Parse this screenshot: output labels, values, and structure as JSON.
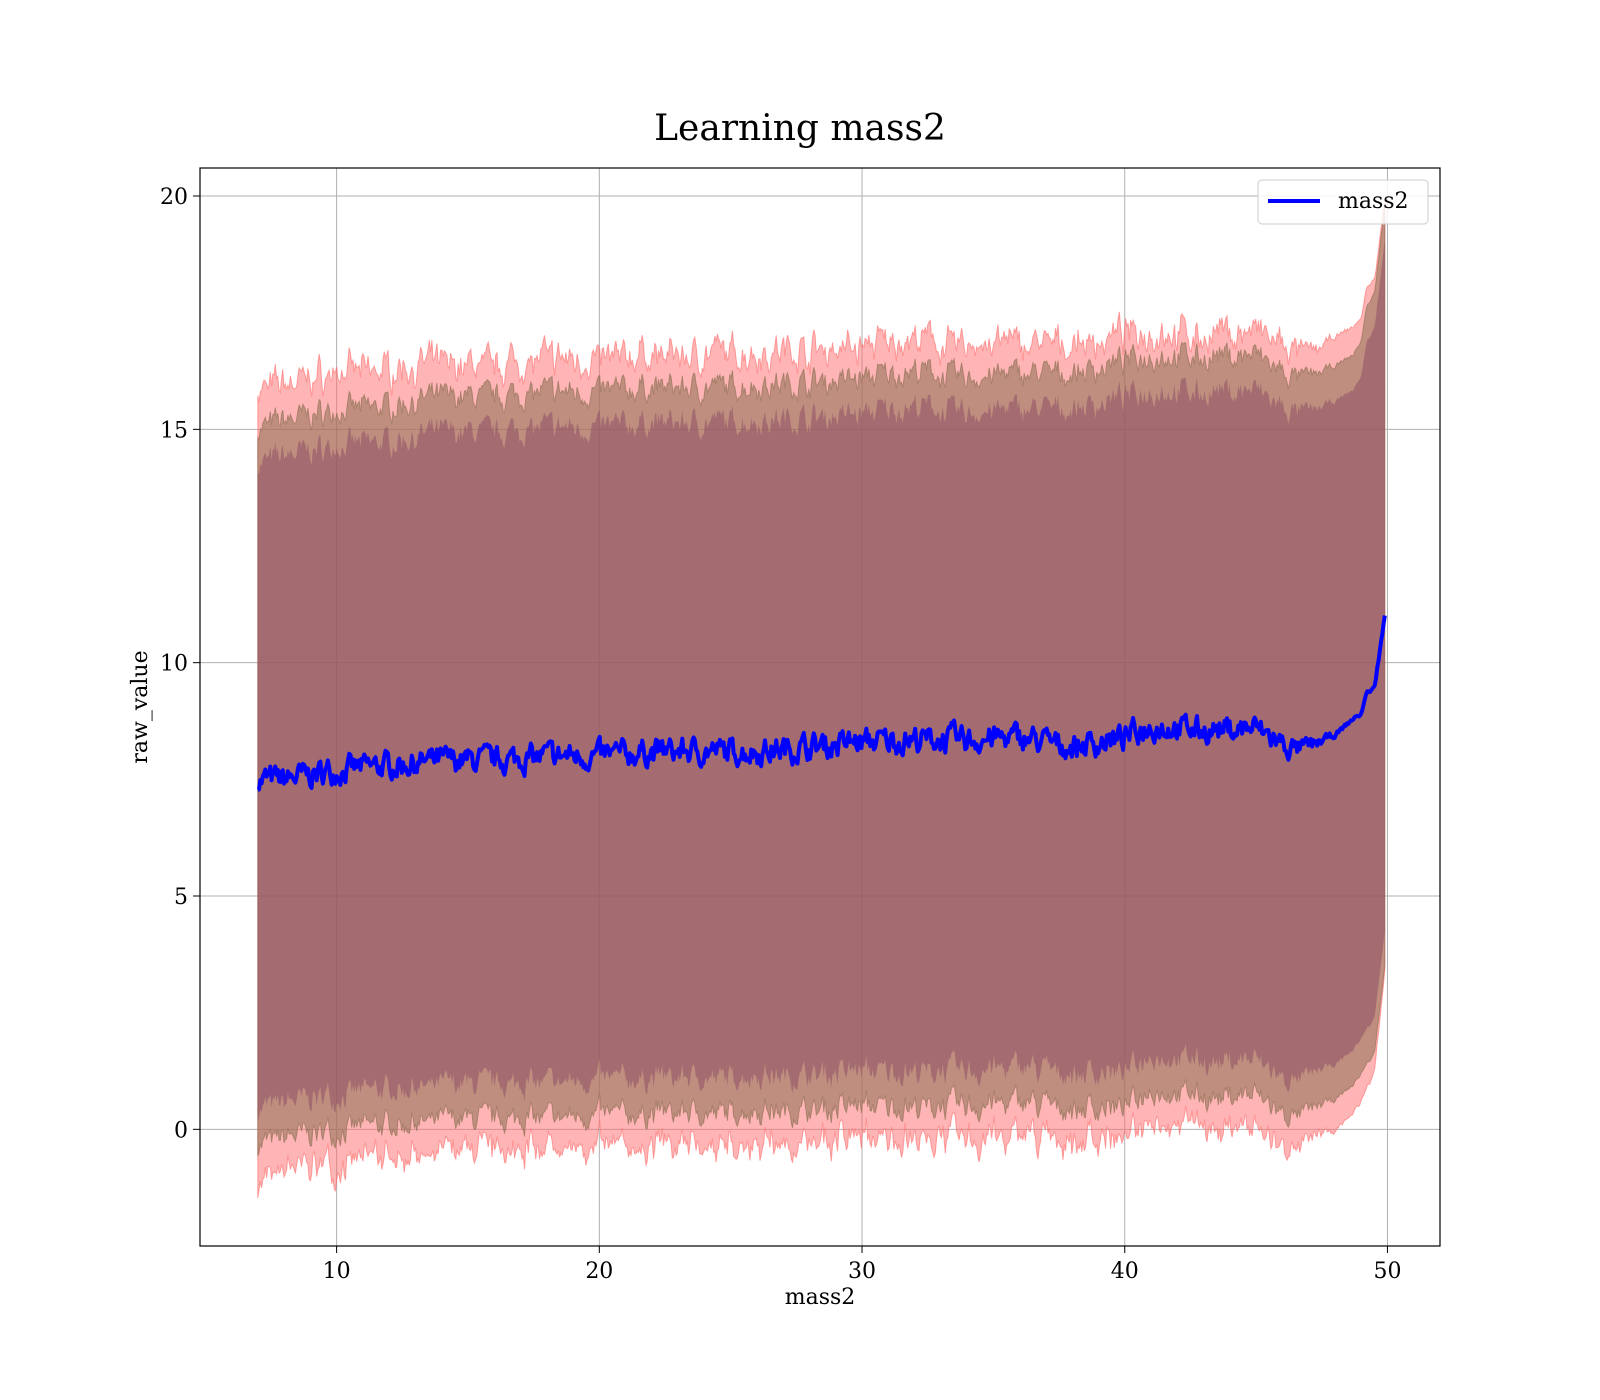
{
  "chart_data": {
    "type": "line",
    "title": "Learning mass2",
    "xlabel": "mass2",
    "ylabel": "raw_value",
    "xlim": [
      4.8,
      52.0
    ],
    "ylim": [
      -2.5,
      20.6
    ],
    "xticks": [
      10,
      20,
      30,
      40,
      50
    ],
    "yticks": [
      0,
      5,
      10,
      15,
      20
    ],
    "grid": true,
    "legend": {
      "position": "top-right",
      "entries": [
        "mass2"
      ]
    },
    "series": [
      {
        "name": "mass2",
        "color": "#0000ff",
        "x": [
          7.0,
          8.0,
          9.0,
          10.0,
          12.0,
          14.0,
          16.0,
          18.0,
          20.0,
          22.0,
          24.0,
          26.0,
          28.0,
          30.0,
          32.0,
          34.0,
          36.0,
          38.0,
          40.0,
          41.0,
          43.0,
          45.0,
          46.0,
          46.5,
          47.0,
          48.0,
          48.7,
          49.0,
          49.2,
          49.5,
          49.9
        ],
        "mean": [
          7.5,
          7.5,
          7.6,
          7.7,
          7.8,
          7.9,
          7.9,
          8.0,
          8.0,
          8.1,
          8.1,
          8.1,
          8.2,
          8.3,
          8.35,
          8.35,
          8.4,
          8.2,
          8.4,
          8.65,
          8.55,
          8.6,
          8.25,
          8.15,
          8.2,
          8.45,
          8.8,
          8.9,
          9.35,
          9.45,
          11.0
        ],
        "band_inner_upper": [
          15.0,
          15.2,
          15.3,
          15.4,
          15.5,
          15.7,
          15.7,
          15.8,
          15.8,
          15.9,
          15.9,
          15.95,
          16.0,
          16.1,
          16.25,
          16.1,
          16.2,
          16.2,
          16.45,
          16.6,
          16.55,
          16.6,
          16.2,
          16.1,
          16.15,
          16.35,
          16.6,
          16.9,
          17.6,
          17.9,
          19.8
        ],
        "band_inner_lower": [
          -0.3,
          -0.2,
          -0.1,
          0.0,
          0.1,
          0.2,
          0.2,
          0.25,
          0.3,
          0.35,
          0.35,
          0.4,
          0.4,
          0.5,
          0.5,
          0.5,
          0.6,
          0.45,
          0.5,
          0.85,
          0.7,
          0.75,
          0.35,
          0.3,
          0.4,
          0.65,
          0.95,
          1.2,
          1.4,
          1.6,
          3.5
        ],
        "band_outer_upper": [
          15.8,
          16.0,
          16.1,
          16.2,
          16.3,
          16.4,
          16.4,
          16.5,
          16.5,
          16.6,
          16.6,
          16.65,
          16.7,
          16.8,
          16.9,
          16.8,
          16.85,
          16.8,
          17.0,
          17.1,
          17.0,
          17.1,
          16.75,
          16.6,
          16.7,
          16.95,
          17.2,
          17.4,
          18.0,
          18.2,
          19.9
        ],
        "band_outer_lower": [
          -1.1,
          -0.95,
          -0.8,
          -0.7,
          -0.6,
          -0.5,
          -0.5,
          -0.45,
          -0.4,
          -0.35,
          -0.35,
          -0.3,
          -0.3,
          -0.2,
          -0.15,
          -0.2,
          -0.1,
          -0.25,
          -0.1,
          0.2,
          0.1,
          0.05,
          -0.3,
          -0.35,
          -0.25,
          0.0,
          0.35,
          0.6,
          0.9,
          1.2,
          3.4
        ]
      }
    ]
  }
}
